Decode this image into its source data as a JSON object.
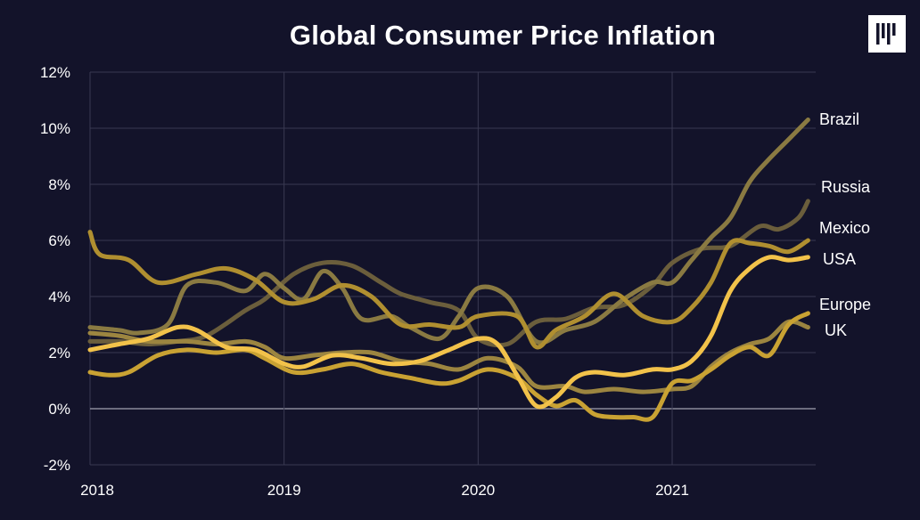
{
  "title": "Global Consumer Price Inflation",
  "logo": {
    "icon": "bar-logo-icon"
  },
  "colors": {
    "background": "#13132a",
    "grid": "#3a3a52",
    "zero_line": "#8a8a9a",
    "text": "#ffffff"
  },
  "chart_data": {
    "type": "line",
    "title": "Global Consumer Price Inflation",
    "xlabel": "",
    "ylabel": "",
    "xlim": [
      2018.0,
      2021.75
    ],
    "ylim": [
      -2,
      12
    ],
    "x_ticks": [
      2018,
      2019,
      2020,
      2021
    ],
    "x_tick_labels": [
      "2018",
      "2019",
      "2020",
      "2021"
    ],
    "y_ticks": [
      -2,
      0,
      2,
      4,
      6,
      8,
      10,
      12
    ],
    "y_tick_labels": [
      "-2%",
      "0%",
      "2%",
      "4%",
      "6%",
      "8%",
      "10%",
      "12%"
    ],
    "grid": true,
    "series": [
      {
        "name": "Brazil",
        "color": "#8a7a42",
        "width": 5,
        "x": [
          2018.0,
          2018.15,
          2018.25,
          2018.4,
          2018.5,
          2018.65,
          2018.8,
          2018.9,
          2019.0,
          2019.1,
          2019.2,
          2019.3,
          2019.4,
          2019.55,
          2019.65,
          2019.8,
          2019.9,
          2020.0,
          2020.15,
          2020.3,
          2020.45,
          2020.6,
          2020.75,
          2020.9,
          2021.0,
          2021.1,
          2021.2,
          2021.3,
          2021.4,
          2021.5,
          2021.6,
          2021.7
        ],
        "y": [
          2.9,
          2.8,
          2.7,
          3.0,
          4.4,
          4.5,
          4.2,
          4.8,
          4.3,
          3.9,
          4.9,
          4.3,
          3.2,
          3.3,
          2.9,
          2.5,
          3.3,
          4.3,
          4.0,
          2.4,
          2.8,
          3.1,
          3.9,
          4.5,
          4.5,
          5.3,
          6.1,
          6.8,
          8.1,
          8.9,
          9.6,
          10.3
        ]
      },
      {
        "name": "Russia",
        "color": "#6b5e3c",
        "width": 5,
        "x": [
          2018.0,
          2018.15,
          2018.3,
          2018.45,
          2018.6,
          2018.8,
          2018.9,
          2019.05,
          2019.2,
          2019.35,
          2019.5,
          2019.6,
          2019.75,
          2019.9,
          2020.0,
          2020.15,
          2020.3,
          2020.45,
          2020.6,
          2020.75,
          2020.9,
          2021.0,
          2021.15,
          2021.3,
          2021.45,
          2021.55,
          2021.65,
          2021.7
        ],
        "y": [
          2.4,
          2.4,
          2.3,
          2.4,
          2.6,
          3.5,
          3.9,
          4.8,
          5.2,
          5.1,
          4.5,
          4.1,
          3.8,
          3.5,
          2.5,
          2.3,
          3.1,
          3.2,
          3.6,
          3.7,
          4.4,
          5.2,
          5.7,
          5.8,
          6.5,
          6.4,
          6.8,
          7.4
        ]
      },
      {
        "name": "Mexico",
        "color": "#b08f30",
        "width": 5,
        "x": [
          2018.0,
          2018.05,
          2018.2,
          2018.35,
          2018.55,
          2018.7,
          2018.85,
          2019.0,
          2019.15,
          2019.3,
          2019.45,
          2019.6,
          2019.75,
          2019.9,
          2020.0,
          2020.2,
          2020.3,
          2020.4,
          2020.55,
          2020.7,
          2020.85,
          2021.0,
          2021.1,
          2021.2,
          2021.3,
          2021.4,
          2021.5,
          2021.6,
          2021.7
        ],
        "y": [
          6.3,
          5.5,
          5.3,
          4.5,
          4.8,
          5.0,
          4.6,
          3.8,
          3.9,
          4.4,
          4.0,
          3.0,
          3.0,
          2.9,
          3.3,
          3.3,
          2.2,
          2.8,
          3.3,
          4.1,
          3.3,
          3.1,
          3.6,
          4.5,
          5.9,
          5.9,
          5.8,
          5.6,
          6.0
        ]
      },
      {
        "name": "USA",
        "color": "#f2c24a",
        "width": 5,
        "x": [
          2018.0,
          2018.15,
          2018.3,
          2018.45,
          2018.55,
          2018.7,
          2018.85,
          2019.0,
          2019.1,
          2019.25,
          2019.4,
          2019.55,
          2019.7,
          2019.85,
          2020.0,
          2020.1,
          2020.2,
          2020.3,
          2020.4,
          2020.5,
          2020.6,
          2020.75,
          2020.9,
          2021.0,
          2021.1,
          2021.2,
          2021.3,
          2021.4,
          2021.5,
          2021.6,
          2021.7
        ],
        "y": [
          2.1,
          2.3,
          2.5,
          2.9,
          2.8,
          2.2,
          2.1,
          1.6,
          1.5,
          1.9,
          1.8,
          1.6,
          1.7,
          2.1,
          2.5,
          2.3,
          1.2,
          0.1,
          0.4,
          1.1,
          1.3,
          1.2,
          1.4,
          1.4,
          1.7,
          2.6,
          4.2,
          5.0,
          5.4,
          5.3,
          5.4
        ]
      },
      {
        "name": "Europe",
        "color": "#c9a233",
        "width": 5,
        "x": [
          2018.0,
          2018.1,
          2018.2,
          2018.35,
          2018.5,
          2018.65,
          2018.8,
          2018.9,
          2019.05,
          2019.2,
          2019.35,
          2019.5,
          2019.65,
          2019.8,
          2019.9,
          2020.05,
          2020.2,
          2020.3,
          2020.4,
          2020.5,
          2020.6,
          2020.7,
          2020.8,
          2020.9,
          2021.0,
          2021.1,
          2021.2,
          2021.3,
          2021.4,
          2021.5,
          2021.6,
          2021.7
        ],
        "y": [
          1.3,
          1.2,
          1.3,
          1.9,
          2.1,
          2.0,
          2.1,
          1.8,
          1.3,
          1.4,
          1.6,
          1.3,
          1.1,
          0.9,
          1.0,
          1.4,
          1.1,
          0.5,
          0.1,
          0.3,
          -0.2,
          -0.3,
          -0.3,
          -0.3,
          0.9,
          1.0,
          1.4,
          1.9,
          2.2,
          1.9,
          3.0,
          3.4
        ]
      },
      {
        "name": "UK",
        "color": "#9c8540",
        "width": 5,
        "x": [
          2018.0,
          2018.15,
          2018.3,
          2018.5,
          2018.65,
          2018.8,
          2018.9,
          2019.0,
          2019.15,
          2019.3,
          2019.45,
          2019.6,
          2019.75,
          2019.9,
          2020.05,
          2020.2,
          2020.3,
          2020.45,
          2020.55,
          2020.7,
          2020.85,
          2021.0,
          2021.1,
          2021.2,
          2021.3,
          2021.4,
          2021.5,
          2021.6,
          2021.7
        ],
        "y": [
          2.7,
          2.6,
          2.4,
          2.4,
          2.3,
          2.4,
          2.2,
          1.8,
          1.9,
          2.0,
          2.0,
          1.7,
          1.6,
          1.4,
          1.8,
          1.5,
          0.8,
          0.8,
          0.6,
          0.7,
          0.6,
          0.7,
          0.8,
          1.5,
          2.0,
          2.3,
          2.5,
          3.1,
          2.9
        ]
      }
    ]
  }
}
